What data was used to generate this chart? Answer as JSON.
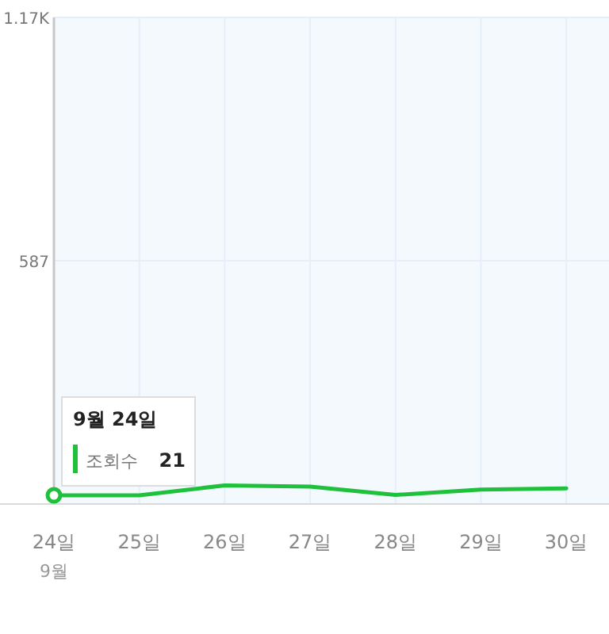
{
  "chart_data": {
    "type": "line",
    "categories": [
      "24일",
      "25일",
      "26일",
      "27일",
      "28일",
      "29일",
      "30일"
    ],
    "series": [
      {
        "name": "조회수",
        "color": "#1ec03c",
        "values": [
          21,
          21,
          45,
          42,
          22,
          35,
          38
        ]
      }
    ],
    "ylim": [
      0,
      1174
    ],
    "yticks": [
      {
        "value": 587,
        "label": "587"
      },
      {
        "value": 1174,
        "label": "1.17K"
      }
    ],
    "grid": true,
    "legend": "bottom left",
    "marker": "none",
    "annotations": [
      "9월 24일",
      "21",
      "9월"
    ]
  }
}
